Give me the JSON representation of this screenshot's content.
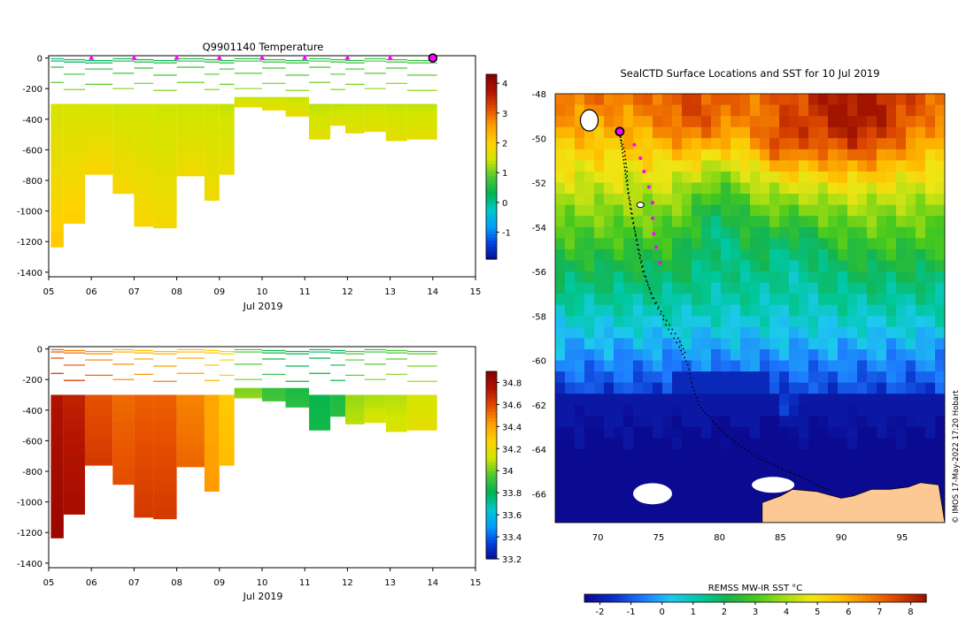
{
  "colors": {
    "temp_scale": [
      "#0a0a8c",
      "#0040e0",
      "#00a0ff",
      "#00c8c8",
      "#00b450",
      "#50c832",
      "#d2e600",
      "#ffd200",
      "#ffa000",
      "#e65000",
      "#b41400",
      "#8c0000"
    ],
    "sst_scale": [
      "#0b0b92",
      "#0a32c8",
      "#1e78ff",
      "#1ec8f0",
      "#00c8a0",
      "#14b450",
      "#46c81e",
      "#a0dc14",
      "#f0e614",
      "#ffbe00",
      "#f58200",
      "#dc4600",
      "#a01400"
    ],
    "profile_marker": "#ff00ff",
    "land": "#fcc894",
    "ice": "#ffffff",
    "track": "#000000"
  },
  "chart_data": [
    {
      "type": "heatmap",
      "name": "temperature-section",
      "title": "Q9901140  Temperature",
      "xlabel": "Jul 2019",
      "ylabel": "",
      "x_ticks": [
        "05",
        "06",
        "07",
        "08",
        "09",
        "10",
        "11",
        "12",
        "13",
        "14",
        "15"
      ],
      "x_range": [
        5,
        15
      ],
      "y_ticks": [
        "0",
        "-200",
        "-400",
        "-600",
        "-800",
        "-1000",
        "-1200",
        "-1400"
      ],
      "y_range": [
        -1430,
        15
      ],
      "colorbar_ticks": [
        "4",
        "3",
        "2",
        "1",
        "0",
        "-1"
      ],
      "colorbar_range": [
        -1.9,
        4.3
      ],
      "profile_markers_day": [
        6.0,
        7.0,
        8.0,
        9.0,
        10.0,
        11.0,
        12.0,
        13.0
      ],
      "last_profile_day": 14.0,
      "profiles": [
        {
          "x0": 5.05,
          "x1": 5.35,
          "bottom": -1235,
          "surface": 0.1,
          "deep": 2.15
        },
        {
          "x0": 5.35,
          "x1": 5.85,
          "bottom": -1080,
          "surface": 0.2,
          "deep": 2.1
        },
        {
          "x0": 5.85,
          "x1": 6.5,
          "bottom": -760,
          "surface": 0.3,
          "deep": 2.0
        },
        {
          "x0": 6.5,
          "x1": 7.0,
          "bottom": -885,
          "surface": 0.3,
          "deep": 1.95
        },
        {
          "x0": 7.0,
          "x1": 7.45,
          "bottom": -1100,
          "surface": 0.4,
          "deep": 1.95
        },
        {
          "x0": 7.45,
          "x1": 8.0,
          "bottom": -1110,
          "surface": 0.4,
          "deep": 1.9
        },
        {
          "x0": 8.0,
          "x1": 8.65,
          "bottom": -770,
          "surface": 0.5,
          "deep": 1.85
        },
        {
          "x0": 8.65,
          "x1": 9.0,
          "bottom": -930,
          "surface": 0.5,
          "deep": 1.85
        },
        {
          "x0": 9.0,
          "x1": 9.35,
          "bottom": -760,
          "surface": 0.5,
          "deep": 1.8
        },
        {
          "x0": 9.35,
          "x1": 10.0,
          "bottom": -320,
          "surface": 0.6,
          "deep": 1.75
        },
        {
          "x0": 10.0,
          "x1": 10.55,
          "bottom": -340,
          "surface": 0.6,
          "deep": 1.75
        },
        {
          "x0": 10.55,
          "x1": 11.1,
          "bottom": -380,
          "surface": 0.6,
          "deep": 1.75
        },
        {
          "x0": 11.1,
          "x1": 11.6,
          "bottom": -530,
          "surface": 0.6,
          "deep": 1.7
        },
        {
          "x0": 11.6,
          "x1": 11.95,
          "bottom": -440,
          "surface": 0.6,
          "deep": 1.7
        },
        {
          "x0": 11.95,
          "x1": 12.4,
          "bottom": -490,
          "surface": 0.7,
          "deep": 1.7
        },
        {
          "x0": 12.4,
          "x1": 12.9,
          "bottom": -480,
          "surface": 0.7,
          "deep": 1.7
        },
        {
          "x0": 12.9,
          "x1": 13.4,
          "bottom": -540,
          "surface": 0.7,
          "deep": 1.7
        },
        {
          "x0": 13.4,
          "x1": 14.1,
          "bottom": -530,
          "surface": 0.7,
          "deep": 1.7
        }
      ]
    },
    {
      "type": "heatmap",
      "name": "salinity-section",
      "title": "",
      "xlabel": "Jul 2019",
      "ylabel": "",
      "x_ticks": [
        "05",
        "06",
        "07",
        "08",
        "09",
        "10",
        "11",
        "12",
        "13",
        "14",
        "15"
      ],
      "x_range": [
        5,
        15
      ],
      "y_ticks": [
        "0",
        "-200",
        "-400",
        "-600",
        "-800",
        "-1000",
        "-1200",
        "-1400"
      ],
      "y_range": [
        -1430,
        15
      ],
      "colorbar_ticks": [
        "34.8",
        "34.6",
        "34.4",
        "34.2",
        "34",
        "33.8",
        "33.6",
        "33.4",
        "33.2"
      ],
      "colorbar_range": [
        33.2,
        34.9
      ],
      "profiles": [
        {
          "x0": 5.05,
          "x1": 5.35,
          "bottom": -1235,
          "surface": 34.55,
          "deep": 34.85
        },
        {
          "x0": 5.35,
          "x1": 5.85,
          "bottom": -1080,
          "surface": 34.5,
          "deep": 34.8
        },
        {
          "x0": 5.85,
          "x1": 6.5,
          "bottom": -760,
          "surface": 34.45,
          "deep": 34.65
        },
        {
          "x0": 6.5,
          "x1": 7.0,
          "bottom": -885,
          "surface": 34.4,
          "deep": 34.6
        },
        {
          "x0": 7.0,
          "x1": 7.45,
          "bottom": -1100,
          "surface": 34.35,
          "deep": 34.65
        },
        {
          "x0": 7.45,
          "x1": 8.0,
          "bottom": -1110,
          "surface": 34.35,
          "deep": 34.65
        },
        {
          "x0": 8.0,
          "x1": 8.65,
          "bottom": -770,
          "surface": 34.35,
          "deep": 34.55
        },
        {
          "x0": 8.65,
          "x1": 9.0,
          "bottom": -930,
          "surface": 34.3,
          "deep": 34.45
        },
        {
          "x0": 9.0,
          "x1": 9.35,
          "bottom": -760,
          "surface": 34.2,
          "deep": 34.35
        },
        {
          "x0": 9.35,
          "x1": 10.0,
          "bottom": -320,
          "surface": 33.95,
          "deep": 34.05
        },
        {
          "x0": 10.0,
          "x1": 10.55,
          "bottom": -340,
          "surface": 33.85,
          "deep": 33.95
        },
        {
          "x0": 10.55,
          "x1": 11.1,
          "bottom": -380,
          "surface": 33.8,
          "deep": 33.9
        },
        {
          "x0": 11.1,
          "x1": 11.6,
          "bottom": -530,
          "surface": 33.8,
          "deep": 33.85
        },
        {
          "x0": 11.6,
          "x1": 11.95,
          "bottom": -440,
          "surface": 33.8,
          "deep": 33.9
        },
        {
          "x0": 11.95,
          "x1": 12.4,
          "bottom": -490,
          "surface": 33.95,
          "deep": 34.1
        },
        {
          "x0": 12.4,
          "x1": 12.9,
          "bottom": -480,
          "surface": 33.9,
          "deep": 34.15
        },
        {
          "x0": 12.9,
          "x1": 13.4,
          "bottom": -540,
          "surface": 33.95,
          "deep": 34.15
        },
        {
          "x0": 13.4,
          "x1": 14.1,
          "bottom": -530,
          "surface": 33.95,
          "deep": 34.2
        }
      ]
    },
    {
      "type": "heatmap",
      "name": "sst-map",
      "title": "SealCTD Surface Locations and SST for 10 Jul 2019",
      "xlabel": "",
      "ylabel": "",
      "lon_range": [
        66.5,
        98.5
      ],
      "lat_range": [
        -67.3,
        -48
      ],
      "x_ticks": [
        "70",
        "75",
        "80",
        "85",
        "90",
        "95"
      ],
      "y_ticks": [
        "-48",
        "-50",
        "-52",
        "-54",
        "-56",
        "-58",
        "-60",
        "-62",
        "-64",
        "-66"
      ],
      "colorbar_label": "REMSS MW-IR SST °C",
      "colorbar_ticks": [
        "-2",
        "-1",
        "0",
        "1",
        "2",
        "3",
        "4",
        "5",
        "6",
        "7",
        "8"
      ],
      "colorbar_range": [
        -2.5,
        8.5
      ],
      "track": [
        [
          71.8,
          -49.8
        ],
        [
          72.2,
          -50.6
        ],
        [
          72.4,
          -51.5
        ],
        [
          72.5,
          -52.5
        ],
        [
          72.8,
          -53.6
        ],
        [
          73.3,
          -54.8
        ],
        [
          73.8,
          -56.0
        ],
        [
          74.5,
          -57.2
        ],
        [
          75.6,
          -58.4
        ],
        [
          76.7,
          -59.4
        ],
        [
          77.4,
          -60.2
        ],
        [
          77.8,
          -61.2
        ],
        [
          78.3,
          -62.0
        ],
        [
          79.2,
          -62.6
        ],
        [
          80.4,
          -63.3
        ],
        [
          81.8,
          -63.9
        ],
        [
          83.2,
          -64.4
        ],
        [
          84.8,
          -64.8
        ],
        [
          86.5,
          -65.2
        ],
        [
          88.0,
          -65.6
        ],
        [
          89.2,
          -65.9
        ]
      ],
      "track2": [
        [
          71.8,
          -49.8
        ],
        [
          72.0,
          -50.5
        ],
        [
          72.2,
          -51.3
        ],
        [
          72.4,
          -52.1
        ],
        [
          72.7,
          -53.0
        ],
        [
          73.0,
          -54.0
        ],
        [
          73.3,
          -55.0
        ],
        [
          73.7,
          -56.0
        ],
        [
          74.4,
          -57.0
        ],
        [
          75.4,
          -58.0
        ],
        [
          76.6,
          -59.0
        ],
        [
          77.3,
          -59.8
        ]
      ],
      "profile_points": [
        [
          73.0,
          -50.3
        ],
        [
          73.5,
          -50.9
        ],
        [
          73.8,
          -51.5
        ],
        [
          74.2,
          -52.2
        ],
        [
          74.5,
          -52.9
        ],
        [
          74.5,
          -53.6
        ],
        [
          74.6,
          -54.3
        ],
        [
          74.8,
          -54.9
        ],
        [
          75.1,
          -55.6
        ]
      ],
      "current_position": [
        71.8,
        -49.7
      ],
      "land_lons": [
        [
          83.5,
          -66.4
        ],
        [
          85.0,
          -66.1
        ],
        [
          86.0,
          -65.8
        ],
        [
          88.0,
          -65.9
        ],
        [
          90.0,
          -66.2
        ],
        [
          91.0,
          -66.1
        ],
        [
          92.5,
          -65.8
        ],
        [
          94.0,
          -65.8
        ],
        [
          95.5,
          -65.7
        ],
        [
          96.5,
          -65.5
        ],
        [
          98.0,
          -65.6
        ]
      ]
    }
  ]
}
